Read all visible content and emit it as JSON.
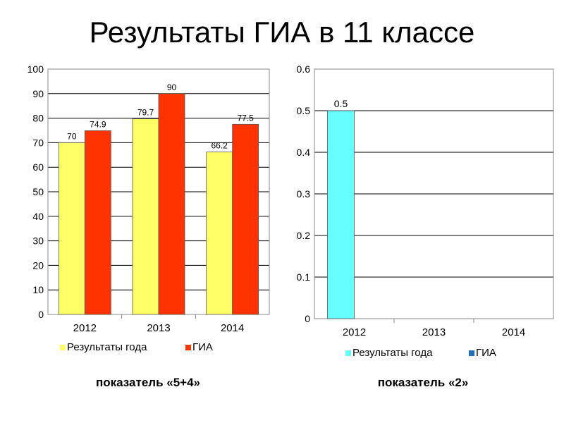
{
  "slide_title": "Результаты ГИА в 11 классе",
  "chart_data": [
    {
      "type": "bar",
      "caption": "показатель «5+4»",
      "categories": [
        "2012",
        "2013",
        "2014"
      ],
      "ylim": [
        0,
        100
      ],
      "yticks": [
        0,
        10,
        20,
        30,
        40,
        50,
        60,
        70,
        80,
        90,
        100
      ],
      "ytick_labels": [
        "0",
        "10",
        "20",
        "30",
        "40",
        "50",
        "60",
        "70",
        "80",
        "90",
        "100"
      ],
      "grid": true,
      "legend_position": "bottom",
      "series": [
        {
          "name": "Результаты года",
          "color": "#ffff66",
          "values": [
            70,
            79.7,
            66.2
          ],
          "labels": [
            "70",
            "79.7",
            "66.2"
          ]
        },
        {
          "name": "ГИА",
          "color": "#ff3300",
          "values": [
            74.9,
            90,
            77.5
          ],
          "labels": [
            "74.9",
            "90",
            "77.5"
          ]
        }
      ]
    },
    {
      "type": "bar",
      "caption": "показатель «2»",
      "categories": [
        "2012",
        "2013",
        "2014"
      ],
      "ylim": [
        0,
        0.6
      ],
      "yticks": [
        0,
        0.1,
        0.2,
        0.3,
        0.4,
        0.5,
        0.6
      ],
      "ytick_labels": [
        "0",
        "0.1",
        "0.2",
        "0.3",
        "0.4",
        "0.5",
        "0.6"
      ],
      "grid": true,
      "legend_position": "bottom",
      "series": [
        {
          "name": "Результаты года",
          "color": "#66ffff",
          "values": [
            0.5,
            0,
            0
          ],
          "labels": [
            "0.5",
            "",
            ""
          ]
        },
        {
          "name": "ГИА",
          "color": "#1f6fbf",
          "values": [
            0,
            0,
            0
          ],
          "labels": [
            "",
            "",
            ""
          ]
        }
      ]
    }
  ]
}
